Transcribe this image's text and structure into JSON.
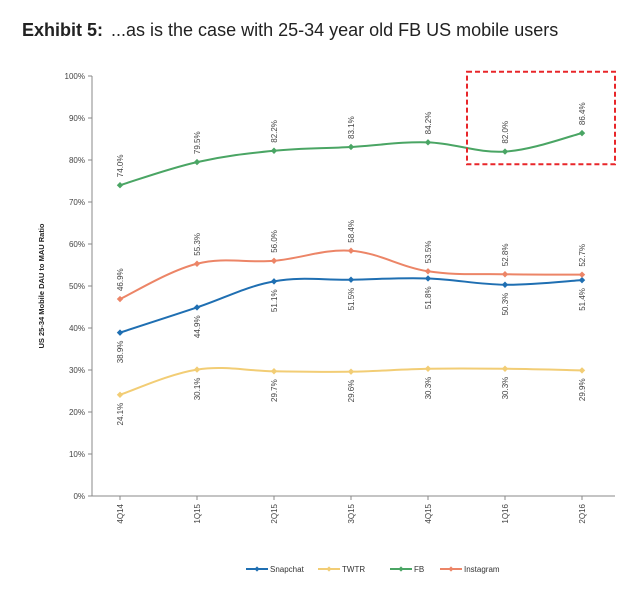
{
  "header": {
    "label": "Exhibit 5:",
    "text": "...as is the case with 25-34 year old FB US mobile users"
  },
  "chart_data": {
    "type": "line",
    "title": "",
    "ylabel": "US 25-34 Mobile DAU to MAU Ratio",
    "xlabel": "",
    "ylim": [
      0,
      100
    ],
    "y_ticks": [
      "0%",
      "10%",
      "20%",
      "30%",
      "40%",
      "50%",
      "60%",
      "70%",
      "80%",
      "90%",
      "100%"
    ],
    "categories": [
      "4Q14",
      "1Q15",
      "2Q15",
      "3Q15",
      "4Q15",
      "1Q16",
      "2Q16"
    ],
    "legend_position": "bottom",
    "grid": false,
    "highlight_box": {
      "from_category": "1Q16",
      "to_category": "2Q16",
      "y_from": 79,
      "y_to": 101,
      "color": "#e8262a"
    },
    "series": [
      {
        "name": "Snapchat",
        "color": "#1f6fb2",
        "values": [
          38.9,
          44.9,
          51.1,
          51.5,
          51.8,
          50.3,
          51.4
        ],
        "labels": [
          "38.9%",
          "44.9%",
          "51.1%",
          "51.5%",
          "51.8%",
          "50.3%",
          "51.4%"
        ],
        "label_side": "below"
      },
      {
        "name": "TWTR",
        "color": "#f2cd75",
        "values": [
          24.1,
          30.1,
          29.7,
          29.6,
          30.3,
          30.3,
          29.9
        ],
        "labels": [
          "24.1%",
          "30.1%",
          "29.7%",
          "29.6%",
          "30.3%",
          "30.3%",
          "29.9%"
        ],
        "label_side": "below"
      },
      {
        "name": "FB",
        "color": "#4aa564",
        "values": [
          74.0,
          79.5,
          82.2,
          83.1,
          84.2,
          82.0,
          86.4
        ],
        "labels": [
          "74.0%",
          "79.5%",
          "82.2%",
          "83.1%",
          "84.2%",
          "82.0%",
          "86.4%"
        ],
        "label_side": "above"
      },
      {
        "name": "Instagram",
        "color": "#ec8567",
        "values": [
          46.9,
          55.3,
          56.0,
          58.4,
          53.5,
          52.8,
          52.7
        ],
        "labels": [
          "46.9%",
          "55.3%",
          "56.0%",
          "58.4%",
          "53.5%",
          "52.8%",
          "52.7%"
        ],
        "label_side": "above"
      }
    ]
  }
}
